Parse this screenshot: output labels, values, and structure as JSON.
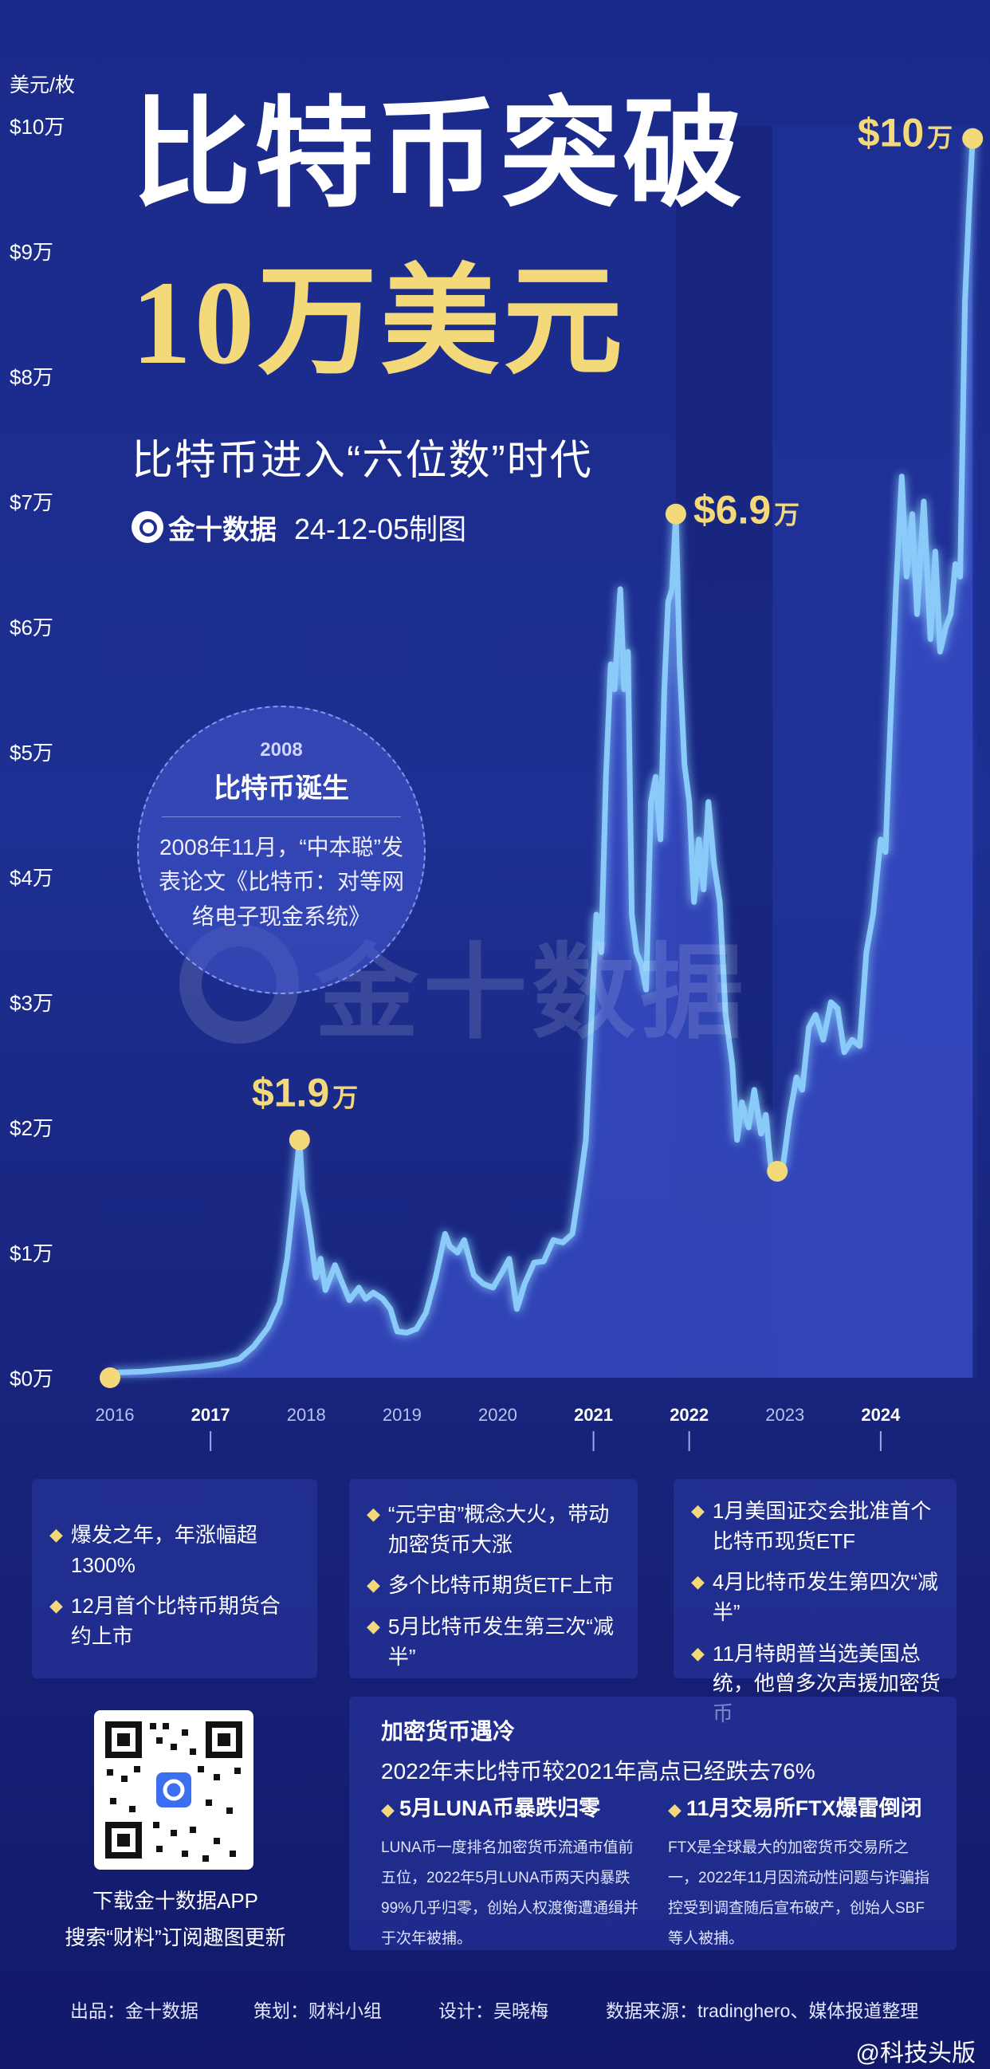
{
  "header": {
    "title_line1": "比特币突破",
    "title_line2": "10万美元",
    "subtitle": "比特币进入“六位数”时代",
    "brand": "金十数据",
    "date": "24-12-05制图"
  },
  "callout": {
    "year": "2008",
    "heading": "比特币诞生",
    "body": "2008年11月，“中本聪”发表论文《比特币：对等网络电子现金系统》"
  },
  "watermark": "金十数据",
  "chart_data": {
    "type": "line",
    "title": "比特币突破10万美元",
    "ylabel": "美元/枚",
    "y_ticks": [
      "$0万",
      "$1万",
      "$2万",
      "$3万",
      "$4万",
      "$5万",
      "$6万",
      "$7万",
      "$8万",
      "$9万",
      "$10万"
    ],
    "x_ticks": [
      "2016",
      "2017",
      "2018",
      "2019",
      "2020",
      "2021",
      "2022",
      "2023",
      "2024"
    ],
    "highlight_years": [
      "2017",
      "2021",
      "2022",
      "2024"
    ],
    "ylim": [
      0,
      10
    ],
    "yunit": "万美元",
    "xlim": [
      2015.8,
      2025.0
    ],
    "series": [
      {
        "points": [
          [
            2015.95,
            0.04
          ],
          [
            2016.3,
            0.05
          ],
          [
            2016.6,
            0.07
          ],
          [
            2016.9,
            0.09
          ],
          [
            2017.1,
            0.11
          ],
          [
            2017.3,
            0.15
          ],
          [
            2017.45,
            0.25
          ],
          [
            2017.6,
            0.4
          ],
          [
            2017.72,
            0.6
          ],
          [
            2017.8,
            0.95
          ],
          [
            2017.85,
            1.3
          ],
          [
            2017.89,
            1.6
          ],
          [
            2017.93,
            1.9
          ],
          [
            2017.96,
            1.5
          ],
          [
            2018.0,
            1.35
          ],
          [
            2018.05,
            1.1
          ],
          [
            2018.1,
            0.8
          ],
          [
            2018.15,
            0.95
          ],
          [
            2018.2,
            0.7
          ],
          [
            2018.3,
            0.9
          ],
          [
            2018.38,
            0.75
          ],
          [
            2018.45,
            0.62
          ],
          [
            2018.55,
            0.72
          ],
          [
            2018.62,
            0.63
          ],
          [
            2018.7,
            0.68
          ],
          [
            2018.8,
            0.63
          ],
          [
            2018.88,
            0.55
          ],
          [
            2018.95,
            0.37
          ],
          [
            2019.05,
            0.36
          ],
          [
            2019.15,
            0.39
          ],
          [
            2019.25,
            0.52
          ],
          [
            2019.35,
            0.8
          ],
          [
            2019.45,
            1.15
          ],
          [
            2019.5,
            1.05
          ],
          [
            2019.58,
            1.0
          ],
          [
            2019.65,
            1.1
          ],
          [
            2019.75,
            0.82
          ],
          [
            2019.85,
            0.75
          ],
          [
            2019.95,
            0.72
          ],
          [
            2020.05,
            0.85
          ],
          [
            2020.12,
            0.95
          ],
          [
            2020.2,
            0.55
          ],
          [
            2020.28,
            0.75
          ],
          [
            2020.38,
            0.92
          ],
          [
            2020.48,
            0.93
          ],
          [
            2020.58,
            1.1
          ],
          [
            2020.68,
            1.08
          ],
          [
            2020.78,
            1.15
          ],
          [
            2020.85,
            1.5
          ],
          [
            2020.92,
            1.9
          ],
          [
            2020.98,
            2.9
          ],
          [
            2021.03,
            3.7
          ],
          [
            2021.08,
            3.4
          ],
          [
            2021.13,
            4.8
          ],
          [
            2021.18,
            5.7
          ],
          [
            2021.22,
            5.5
          ],
          [
            2021.28,
            6.3
          ],
          [
            2021.32,
            5.5
          ],
          [
            2021.36,
            5.8
          ],
          [
            2021.4,
            3.7
          ],
          [
            2021.45,
            3.4
          ],
          [
            2021.5,
            3.3
          ],
          [
            2021.55,
            3.1
          ],
          [
            2021.6,
            4.6
          ],
          [
            2021.65,
            4.8
          ],
          [
            2021.7,
            4.3
          ],
          [
            2021.74,
            5.5
          ],
          [
            2021.78,
            6.2
          ],
          [
            2021.82,
            6.3
          ],
          [
            2021.86,
            6.9
          ],
          [
            2021.9,
            5.7
          ],
          [
            2021.95,
            4.9
          ],
          [
            2022.0,
            4.6
          ],
          [
            2022.05,
            3.8
          ],
          [
            2022.1,
            4.3
          ],
          [
            2022.15,
            3.9
          ],
          [
            2022.2,
            4.6
          ],
          [
            2022.26,
            4.1
          ],
          [
            2022.32,
            3.8
          ],
          [
            2022.38,
            2.9
          ],
          [
            2022.45,
            2.5
          ],
          [
            2022.5,
            1.9
          ],
          [
            2022.55,
            2.2
          ],
          [
            2022.62,
            2.0
          ],
          [
            2022.68,
            2.3
          ],
          [
            2022.75,
            1.95
          ],
          [
            2022.8,
            2.1
          ],
          [
            2022.85,
            1.7
          ],
          [
            2022.92,
            1.65
          ],
          [
            2022.98,
            1.7
          ],
          [
            2023.05,
            2.1
          ],
          [
            2023.12,
            2.4
          ],
          [
            2023.18,
            2.3
          ],
          [
            2023.25,
            2.8
          ],
          [
            2023.32,
            2.9
          ],
          [
            2023.4,
            2.7
          ],
          [
            2023.48,
            3.0
          ],
          [
            2023.55,
            2.95
          ],
          [
            2023.62,
            2.6
          ],
          [
            2023.7,
            2.7
          ],
          [
            2023.78,
            2.65
          ],
          [
            2023.85,
            3.4
          ],
          [
            2023.92,
            3.7
          ],
          [
            2024.0,
            4.3
          ],
          [
            2024.05,
            4.2
          ],
          [
            2024.1,
            5.2
          ],
          [
            2024.16,
            6.3
          ],
          [
            2024.22,
            7.2
          ],
          [
            2024.27,
            6.4
          ],
          [
            2024.33,
            6.9
          ],
          [
            2024.38,
            6.1
          ],
          [
            2024.45,
            7.0
          ],
          [
            2024.52,
            5.9
          ],
          [
            2024.57,
            6.6
          ],
          [
            2024.62,
            5.8
          ],
          [
            2024.68,
            6.0
          ],
          [
            2024.73,
            6.1
          ],
          [
            2024.78,
            6.5
          ],
          [
            2024.83,
            6.4
          ],
          [
            2024.88,
            8.6
          ],
          [
            2024.92,
            9.3
          ],
          [
            2024.96,
            9.9
          ]
        ]
      }
    ],
    "shaded_regions": [
      [
        2021.86,
        2022.87
      ],
      [
        2022.87,
        2025.0
      ]
    ],
    "annotations": [
      {
        "x": 2015.95,
        "y": 0.0,
        "label": "",
        "unit": ""
      },
      {
        "x": 2017.93,
        "y": 1.9,
        "label": "$1.9",
        "unit": "万"
      },
      {
        "x": 2021.86,
        "y": 6.9,
        "label": "$6.9",
        "unit": "万"
      },
      {
        "x": 2022.92,
        "y": 1.65,
        "label": "",
        "unit": ""
      },
      {
        "x": 2024.96,
        "y": 9.9,
        "label": "$10",
        "unit": "万"
      }
    ]
  },
  "events": {
    "y2017": {
      "items": [
        {
          "text": "爆发之年，年涨幅超1300%"
        },
        {
          "text": "12月首个比特币期货合约上市"
        }
      ]
    },
    "y2021": {
      "items": [
        {
          "text": "“元宇宙”概念大火，带动加密货币大涨"
        },
        {
          "text": "多个比特币期货ETF上市"
        },
        {
          "text": "5月比特币发生第三次“减半”"
        }
      ]
    },
    "y2024": {
      "items": [
        {
          "text": "1月美国证交会批准首个比特币现货ETF"
        },
        {
          "text": "4月比特币发生第四次“减半”"
        },
        {
          "text": "11月特朗普当选美国总统，他曾多次声援加密货币"
        }
      ]
    },
    "y2022": {
      "title": "加密货币遇冷",
      "subtitle": "2022年末比特币较2021年高点已经跌去76%",
      "col1_head": "5月LUNA币暴跌归零",
      "col1_body": "LUNA币一度排名加密货币流通市值前五位，2022年5月LUNA币两天内暴跌99%几乎归零，创始人权渡衡遭通缉并于次年被捕。",
      "col2_head": "11月交易所FTX爆雷倒闭",
      "col2_body": "FTX是全球最大的加密货币交易所之一，2022年11月因流动性问题与诈骗指控受到调查随后宣布破产，创始人SBF等人被捕。"
    }
  },
  "qr": {
    "line1": "下载金十数据APP",
    "line2": "搜索“财料”订阅趣图更新"
  },
  "footer": {
    "producer": "出品：金十数据",
    "planner": "策划：财料小组",
    "designer": "设计：吴晓梅",
    "source": "数据来源：tradinghero、媒体报道整理"
  },
  "weibo": "@科技头版",
  "colors": {
    "line": "#8fd3ff",
    "area": "#3a4fc8",
    "highlight": "#f3d97a",
    "background": "#1b2a8a"
  }
}
